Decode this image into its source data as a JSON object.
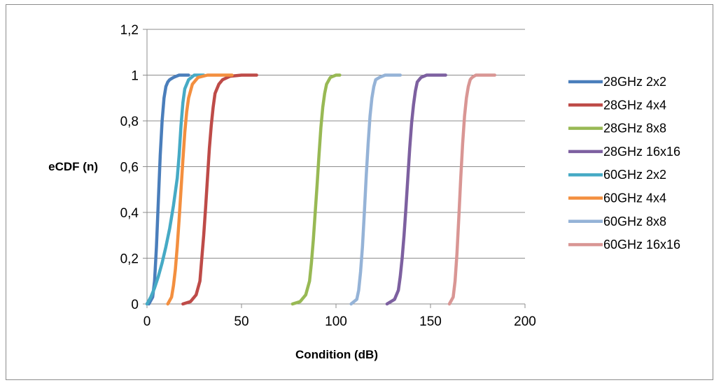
{
  "chart_data": {
    "type": "line",
    "title": "",
    "xlabel": "Condition (dB)",
    "ylabel": "eCDF (n)",
    "xlim": [
      0,
      200
    ],
    "ylim": [
      0,
      1.2
    ],
    "x_ticks": [
      "0",
      "50",
      "100",
      "150",
      "200"
    ],
    "y_ticks": [
      "0",
      "0,2",
      "0,4",
      "0,6",
      "0,8",
      "1",
      "1,2"
    ],
    "grid": "horizontal",
    "legend_position": "right",
    "series": [
      {
        "name": "28GHz 2x2",
        "color": "#4A7EBB",
        "x": [
          1,
          3,
          4,
          5,
          6,
          7,
          8,
          9,
          10,
          11,
          12,
          14,
          17,
          22
        ],
        "y": [
          0,
          0.03,
          0.1,
          0.25,
          0.45,
          0.65,
          0.8,
          0.9,
          0.95,
          0.97,
          0.98,
          0.99,
          1.0,
          1.0
        ]
      },
      {
        "name": "28GHz 4x4",
        "color": "#BE4B48",
        "x": [
          19,
          23,
          26,
          28,
          29,
          30,
          31,
          32,
          33,
          34,
          35,
          36,
          38,
          40,
          44,
          50,
          58
        ],
        "y": [
          0,
          0.01,
          0.04,
          0.1,
          0.2,
          0.3,
          0.42,
          0.55,
          0.68,
          0.78,
          0.86,
          0.92,
          0.96,
          0.98,
          0.995,
          1.0,
          1.0
        ]
      },
      {
        "name": "28GHz 8x8",
        "color": "#98B954",
        "x": [
          77,
          81,
          84,
          86,
          87,
          88,
          89,
          90,
          91,
          92,
          93,
          94,
          95,
          97,
          100,
          102
        ],
        "y": [
          0,
          0.01,
          0.04,
          0.1,
          0.18,
          0.28,
          0.4,
          0.52,
          0.65,
          0.77,
          0.86,
          0.92,
          0.96,
          0.99,
          1.0,
          1.0
        ]
      },
      {
        "name": "28GHz 16x16",
        "color": "#7D60A0",
        "x": [
          127,
          131,
          133,
          134,
          135,
          136,
          137,
          138,
          139,
          140,
          141,
          142,
          143,
          145,
          148,
          158
        ],
        "y": [
          0,
          0.02,
          0.06,
          0.12,
          0.2,
          0.3,
          0.42,
          0.55,
          0.68,
          0.79,
          0.87,
          0.93,
          0.97,
          0.99,
          1.0,
          1.0
        ]
      },
      {
        "name": "60GHz 2x2",
        "color": "#46AAC5",
        "x": [
          0,
          2,
          4,
          6,
          8,
          10,
          12,
          14,
          16,
          17,
          18,
          19,
          20,
          22,
          25,
          30
        ],
        "y": [
          0,
          0.03,
          0.07,
          0.12,
          0.18,
          0.25,
          0.33,
          0.43,
          0.55,
          0.65,
          0.78,
          0.88,
          0.94,
          0.98,
          1.0,
          1.0
        ]
      },
      {
        "name": "60GHz 4x4",
        "color": "#F38F3F",
        "x": [
          11,
          13,
          14,
          15,
          16,
          17,
          18,
          19,
          20,
          21,
          22,
          24,
          27,
          32,
          45
        ],
        "y": [
          0,
          0.03,
          0.08,
          0.15,
          0.25,
          0.37,
          0.5,
          0.63,
          0.75,
          0.84,
          0.9,
          0.96,
          0.99,
          1.0,
          1.0
        ]
      },
      {
        "name": "60GHz 8x8",
        "color": "#95B3D7",
        "x": [
          108,
          111,
          112,
          113,
          114,
          115,
          116,
          117,
          118,
          119,
          120,
          121,
          123,
          126,
          134
        ],
        "y": [
          0,
          0.02,
          0.06,
          0.14,
          0.25,
          0.4,
          0.56,
          0.7,
          0.82,
          0.9,
          0.95,
          0.98,
          0.99,
          1.0,
          1.0
        ]
      },
      {
        "name": "60GHz 16x16",
        "color": "#D99694",
        "x": [
          160,
          162,
          163,
          164,
          165,
          166,
          167,
          168,
          169,
          170,
          171,
          172,
          174,
          177,
          184
        ],
        "y": [
          0,
          0.03,
          0.1,
          0.22,
          0.38,
          0.55,
          0.7,
          0.82,
          0.9,
          0.95,
          0.98,
          0.99,
          1.0,
          1.0,
          1.0
        ]
      }
    ]
  }
}
